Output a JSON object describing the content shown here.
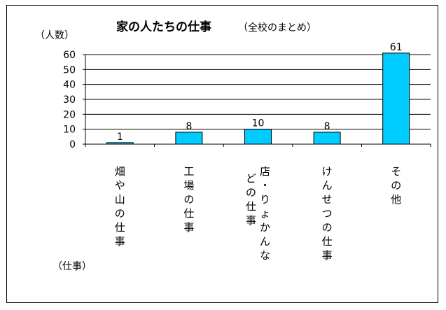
{
  "chart_data": {
    "type": "bar",
    "title": "家の人たちの仕事",
    "subtitle": "（全校のまとめ）",
    "ylabel": "（人数）",
    "xlabel": "（仕事）",
    "categories": [
      "畑や山の仕事",
      "工場の仕事",
      "店・りょかんなどの仕事",
      "けんせつの仕事",
      "その他"
    ],
    "category_columns": [
      [
        "畑や山の仕事"
      ],
      [
        "工場の仕事"
      ],
      [
        "店・りょかんな",
        "どの仕事"
      ],
      [
        "けんせつの仕事"
      ],
      [
        "その他"
      ]
    ],
    "values": [
      1,
      8,
      10,
      8,
      61
    ],
    "data_labels": [
      "1",
      "8",
      "10",
      "8",
      "61"
    ],
    "ylim": [
      0,
      60
    ],
    "yticks": [
      0,
      10,
      20,
      30,
      40,
      50,
      60
    ],
    "grid": true,
    "bar_color": "#00CCFF",
    "legend": "none"
  }
}
